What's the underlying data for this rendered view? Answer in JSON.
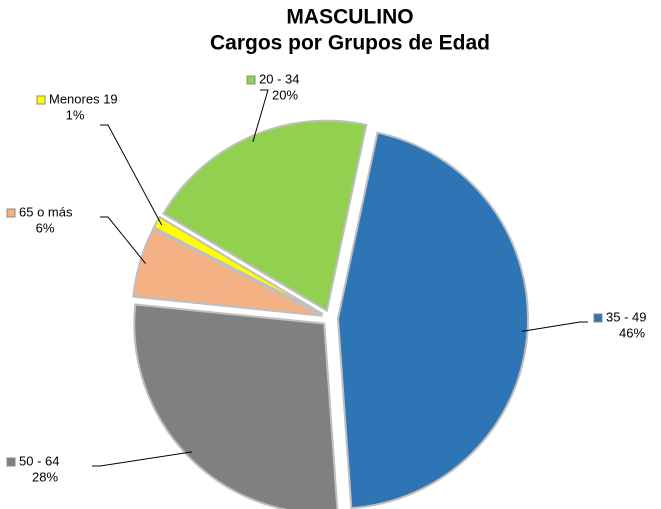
{
  "chart_data": {
    "type": "pie",
    "title": "MASCULINO",
    "subtitle": "Cargos por Grupos de Edad",
    "categories": [
      "35 - 49",
      "50 - 64",
      "65 o más",
      "Menores 19",
      "20 - 34"
    ],
    "values": [
      46,
      28,
      6,
      1,
      20
    ],
    "value_labels": [
      "46%",
      "28%",
      "6%",
      "1%",
      "20%"
    ],
    "colors": [
      "#2e75b6",
      "#808080",
      "#f4b183",
      "#ffff00",
      "#92d050"
    ]
  }
}
